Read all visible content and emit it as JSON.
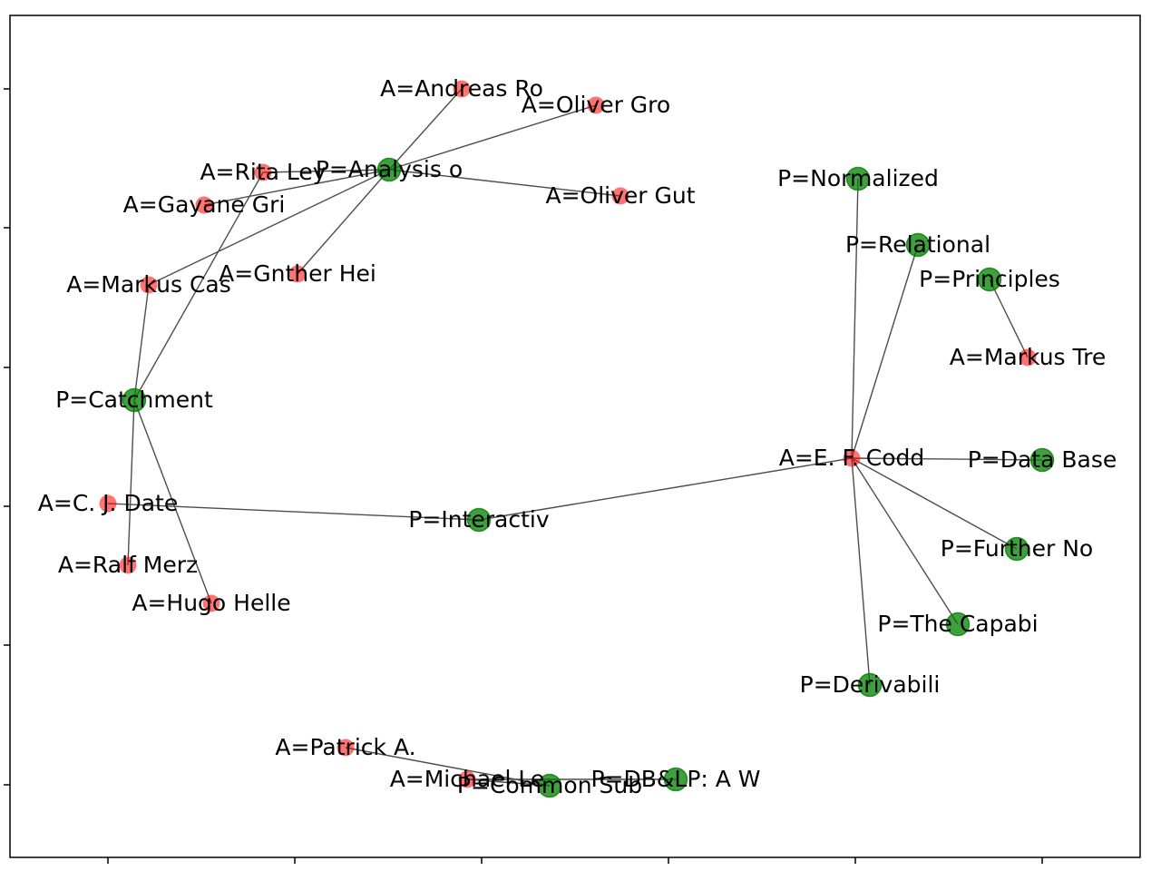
{
  "graph": {
    "node_types": {
      "paper": {
        "color": "#008000"
      },
      "author": {
        "color": "#ff0000"
      }
    },
    "nodes": [
      {
        "id": "A=Andreas Ro",
        "type": "author"
      },
      {
        "id": "A=Oliver Gro",
        "type": "author"
      },
      {
        "id": "P=Analysis o",
        "type": "paper"
      },
      {
        "id": "A=Rita Ley",
        "type": "author"
      },
      {
        "id": "A=Gayane Gri",
        "type": "author"
      },
      {
        "id": "A=Oliver Gut",
        "type": "author"
      },
      {
        "id": "A=Gnther Hei",
        "type": "author"
      },
      {
        "id": "A=Markus Cas",
        "type": "author"
      },
      {
        "id": "P=Catchment",
        "type": "paper"
      },
      {
        "id": "A=C. J. Date",
        "type": "author"
      },
      {
        "id": "P=Interactiv",
        "type": "paper"
      },
      {
        "id": "A=Ralf Merz",
        "type": "author"
      },
      {
        "id": "A=Hugo Helle",
        "type": "author"
      },
      {
        "id": "P=Normalized",
        "type": "paper"
      },
      {
        "id": "P=Relational",
        "type": "paper"
      },
      {
        "id": "P=Principles",
        "type": "paper"
      },
      {
        "id": "A=Markus Tre",
        "type": "author"
      },
      {
        "id": "A=E. F. Codd",
        "type": "author"
      },
      {
        "id": "P=Data Base",
        "type": "paper"
      },
      {
        "id": "P=Further No",
        "type": "paper"
      },
      {
        "id": "P=The Capabi",
        "type": "paper"
      },
      {
        "id": "P=Derivabili",
        "type": "paper"
      },
      {
        "id": "A=Patrick A.",
        "type": "author"
      },
      {
        "id": "A=Michael Le",
        "type": "author"
      },
      {
        "id": "P=Common Sub",
        "type": "paper"
      },
      {
        "id": "P=DB&LP: A W",
        "type": "paper"
      }
    ],
    "edges": [
      [
        "P=Analysis o",
        "A=Andreas Ro"
      ],
      [
        "P=Analysis o",
        "A=Oliver Gro"
      ],
      [
        "P=Analysis o",
        "A=Rita Ley"
      ],
      [
        "P=Analysis o",
        "A=Gayane Gri"
      ],
      [
        "P=Analysis o",
        "A=Oliver Gut"
      ],
      [
        "P=Analysis o",
        "A=Gnther Hei"
      ],
      [
        "P=Analysis o",
        "A=Markus Cas"
      ],
      [
        "P=Catchment",
        "A=Rita Ley"
      ],
      [
        "P=Catchment",
        "A=Markus Cas"
      ],
      [
        "P=Catchment",
        "A=Ralf Merz"
      ],
      [
        "P=Catchment",
        "A=Hugo Helle"
      ],
      [
        "P=Interactiv",
        "A=C. J. Date"
      ],
      [
        "P=Interactiv",
        "A=E. F. Codd"
      ],
      [
        "P=Normalized",
        "A=E. F. Codd"
      ],
      [
        "P=Relational",
        "A=E. F. Codd"
      ],
      [
        "P=Principles",
        "A=Markus Tre"
      ],
      [
        "P=Data Base",
        "A=E. F. Codd"
      ],
      [
        "P=Further No",
        "A=E. F. Codd"
      ],
      [
        "P=The Capabi",
        "A=E. F. Codd"
      ],
      [
        "P=Derivabili",
        "A=E. F. Codd"
      ],
      [
        "P=Common Sub",
        "A=Patrick A."
      ],
      [
        "P=Common Sub",
        "A=Michael Le"
      ],
      [
        "P=DB&LP: A W",
        "A=Michael Le"
      ]
    ]
  }
}
